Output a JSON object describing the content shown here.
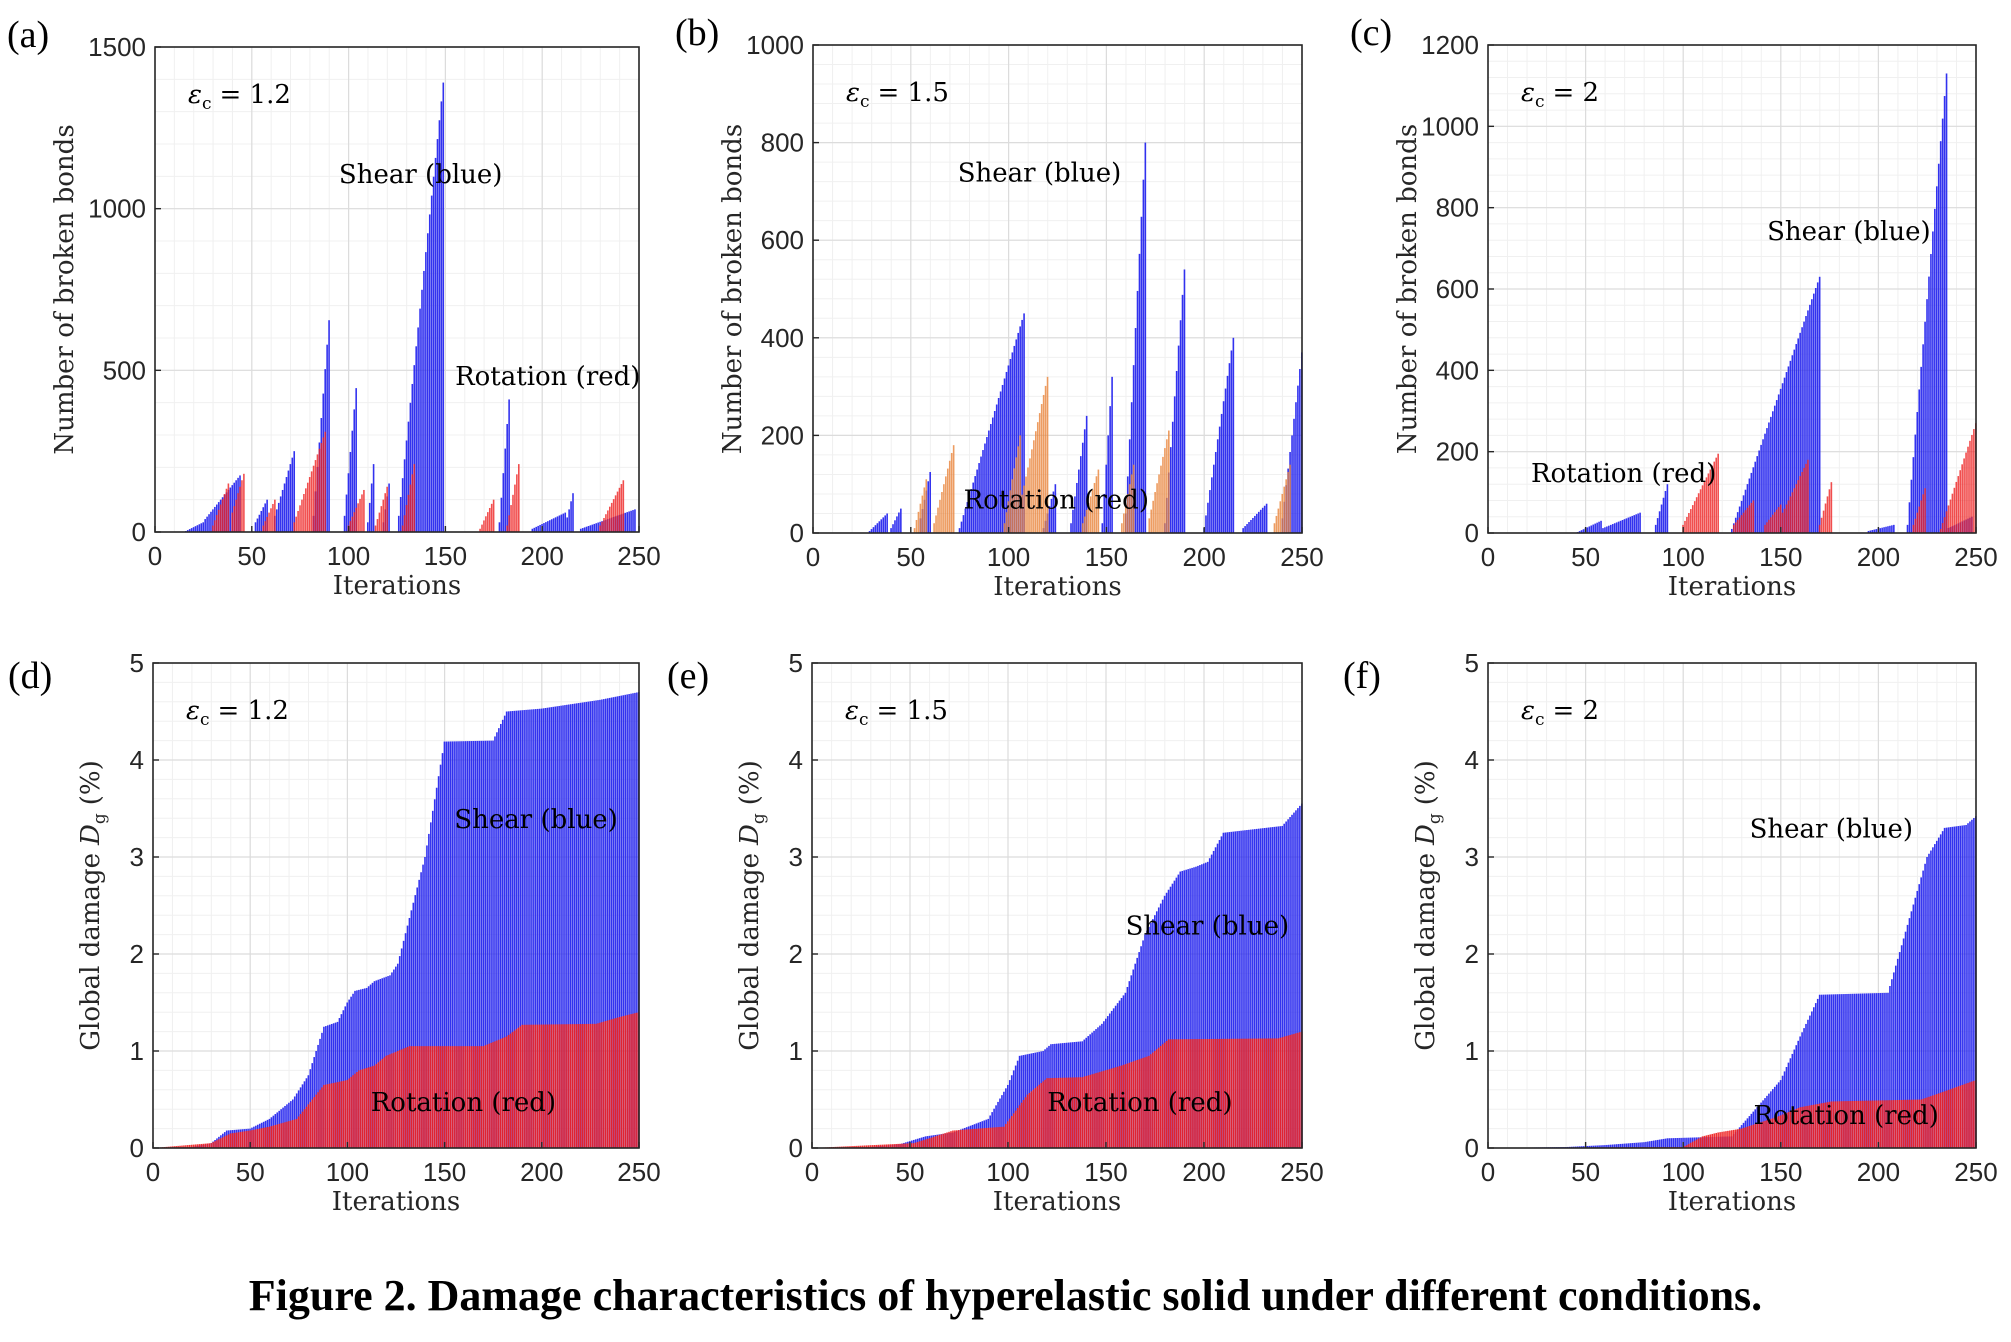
{
  "figure": {
    "caption": "Figure 2. Damage characteristics of hyperelastic solid under different conditions."
  },
  "colors": {
    "shear": "#2222ee",
    "rotation": "#ee2222",
    "rotation_alt": "#e8833a",
    "grid": "#e6e6e6"
  },
  "chart_data": [
    {
      "id": "a",
      "panel_label": "(a)",
      "type": "bar",
      "xlabel": "Iterations",
      "ylabel": "Number of broken bonds",
      "xlim": [
        0,
        250
      ],
      "ylim": [
        0,
        1500
      ],
      "xticks": [
        0,
        50,
        100,
        150,
        200,
        250
      ],
      "yticks": [
        0,
        500,
        1000,
        1500
      ],
      "eps_symbol": "ε",
      "eps_sub": "c",
      "eps_value": "= 1.2",
      "annotations": [
        {
          "text": "Shear (blue)",
          "x": 95,
          "y": 1080
        },
        {
          "text": "Rotation (red)",
          "x": 155,
          "y": 455
        }
      ],
      "series": [
        {
          "name": "Shear (blue)",
          "color": "shear",
          "mode": "ramps",
          "bursts": [
            [
              15,
              25,
              0,
              30
            ],
            [
              26,
              44,
              40,
              175
            ],
            [
              52,
              58,
              30,
              100
            ],
            [
              62,
              72,
              50,
              250
            ],
            [
              82,
              90,
              50,
              655
            ],
            [
              98,
              104,
              50,
              445
            ],
            [
              110,
              113,
              30,
              210
            ],
            [
              118,
              121,
              30,
              150
            ],
            [
              126,
              149,
              50,
              1390
            ],
            [
              178,
              183,
              30,
              410
            ],
            [
              195,
              212,
              10,
              60
            ],
            [
              212,
              216,
              20,
              120
            ],
            [
              220,
              248,
              10,
              70
            ]
          ]
        },
        {
          "name": "Rotation (red)",
          "color": "rotation",
          "mode": "ramps",
          "bursts": [
            [
              30,
              38,
              20,
              150
            ],
            [
              40,
              46,
              60,
              180
            ],
            [
              56,
              62,
              20,
              100
            ],
            [
              72,
              88,
              30,
              310
            ],
            [
              100,
              108,
              20,
              130
            ],
            [
              114,
              120,
              20,
              140
            ],
            [
              128,
              134,
              20,
              210
            ],
            [
              168,
              175,
              10,
              100
            ],
            [
              182,
              188,
              20,
              210
            ],
            [
              230,
              242,
              20,
              160
            ]
          ]
        }
      ]
    },
    {
      "id": "b",
      "panel_label": "(b)",
      "type": "bar",
      "xlabel": "Iterations",
      "ylabel": "Number of broken bonds",
      "xlim": [
        0,
        250
      ],
      "ylim": [
        0,
        1000
      ],
      "xticks": [
        0,
        50,
        100,
        150,
        200,
        250
      ],
      "yticks": [
        0,
        200,
        400,
        600,
        800,
        1000
      ],
      "eps_symbol": "ε",
      "eps_sub": "c",
      "eps_value": "= 1.5",
      "annotations": [
        {
          "text": "Shear (blue)",
          "x": 74,
          "y": 720
        },
        {
          "text": "Rotation (red)",
          "x": 77,
          "y": 50
        }
      ],
      "series": [
        {
          "name": "Shear (blue)",
          "color": "shear",
          "mode": "ramps",
          "bursts": [
            [
              28,
              38,
              0,
              40
            ],
            [
              40,
              45,
              10,
              50
            ],
            [
              55,
              60,
              30,
              125
            ],
            [
              75,
              108,
              10,
              450
            ],
            [
              118,
              124,
              10,
              100
            ],
            [
              132,
              140,
              20,
              240
            ],
            [
              148,
              153,
              20,
              320
            ],
            [
              160,
              170,
              40,
              800
            ],
            [
              180,
              190,
              20,
              540
            ],
            [
              200,
              215,
              10,
              400
            ],
            [
              220,
              232,
              10,
              60
            ],
            [
              240,
              250,
              30,
              370
            ]
          ]
        },
        {
          "name": "Rotation (red)",
          "color": "rotation_alt",
          "mode": "ramps",
          "bursts": [
            [
              52,
              58,
              10,
              110
            ],
            [
              62,
              72,
              20,
              180
            ],
            [
              98,
              106,
              20,
              200
            ],
            [
              106,
              120,
              60,
              320
            ],
            [
              138,
              146,
              20,
              130
            ],
            [
              158,
              164,
              20,
              140
            ],
            [
              172,
              182,
              30,
              210
            ],
            [
              236,
              244,
              20,
              140
            ]
          ]
        }
      ]
    },
    {
      "id": "c",
      "panel_label": "(c)",
      "type": "bar",
      "xlabel": "Iterations",
      "ylabel": "Number of broken bonds",
      "xlim": [
        0,
        250
      ],
      "ylim": [
        0,
        1200
      ],
      "xticks": [
        0,
        50,
        100,
        150,
        200,
        250
      ],
      "yticks": [
        0,
        200,
        400,
        600,
        800,
        1000,
        1200
      ],
      "eps_symbol": "ε",
      "eps_sub": "c",
      "eps_value": "= 2",
      "annotations": [
        {
          "text": "Shear (blue)",
          "x": 143,
          "y": 720
        },
        {
          "text": "Rotation (red)",
          "x": 22,
          "y": 125
        }
      ],
      "series": [
        {
          "name": "Shear (blue)",
          "color": "shear",
          "mode": "ramps",
          "bursts": [
            [
              45,
              58,
              0,
              30
            ],
            [
              58,
              78,
              10,
              50
            ],
            [
              86,
              92,
              20,
              120
            ],
            [
              125,
              170,
              10,
              630
            ],
            [
              195,
              208,
              5,
              20
            ],
            [
              215,
              235,
              20,
              1130
            ],
            [
              235,
              248,
              10,
              40
            ]
          ]
        },
        {
          "name": "Rotation (red)",
          "color": "rotation",
          "mode": "ramps",
          "bursts": [
            [
              100,
              118,
              20,
              195
            ],
            [
              126,
              136,
              20,
              80
            ],
            [
              142,
              150,
              20,
              70
            ],
            [
              150,
              164,
              40,
              180
            ],
            [
              170,
              176,
              20,
              125
            ],
            [
              218,
              224,
              20,
              110
            ],
            [
              232,
              250,
              10,
              270
            ]
          ]
        }
      ]
    },
    {
      "id": "d",
      "panel_label": "(d)",
      "type": "area",
      "xlabel": "Iterations",
      "ylabel": "Global damage",
      "ylabel_sym": "D",
      "ylabel_sub": "g",
      "ylabel_unit": "(%)",
      "xlim": [
        0,
        250
      ],
      "ylim": [
        0,
        5
      ],
      "xticks": [
        0,
        50,
        100,
        150,
        200,
        250
      ],
      "yticks": [
        0,
        1,
        2,
        3,
        4,
        5
      ],
      "eps_symbol": "ε",
      "eps_sub": "c",
      "eps_value": "= 1.2",
      "annotations": [
        {
          "text": "Shear (blue)",
          "x": 155,
          "y": 3.3
        },
        {
          "text": "Rotation (red)",
          "x": 112,
          "y": 0.38
        }
      ],
      "series": [
        {
          "name": "Shear (blue)",
          "color": "shear",
          "mode": "steps",
          "points": [
            [
              0,
              0
            ],
            [
              20,
              0.01
            ],
            [
              30,
              0.05
            ],
            [
              38,
              0.18
            ],
            [
              50,
              0.2
            ],
            [
              60,
              0.3
            ],
            [
              72,
              0.5
            ],
            [
              80,
              0.75
            ],
            [
              88,
              1.25
            ],
            [
              95,
              1.3
            ],
            [
              100,
              1.5
            ],
            [
              104,
              1.62
            ],
            [
              110,
              1.65
            ],
            [
              114,
              1.72
            ],
            [
              122,
              1.78
            ],
            [
              126,
              1.9
            ],
            [
              140,
              3.0
            ],
            [
              150,
              4.19
            ],
            [
              175,
              4.2
            ],
            [
              182,
              4.5
            ],
            [
              200,
              4.53
            ],
            [
              230,
              4.62
            ],
            [
              250,
              4.7
            ]
          ]
        },
        {
          "name": "Rotation (red)",
          "color": "rotation",
          "mode": "steps",
          "points": [
            [
              0,
              0
            ],
            [
              30,
              0.05
            ],
            [
              40,
              0.15
            ],
            [
              50,
              0.18
            ],
            [
              60,
              0.22
            ],
            [
              74,
              0.3
            ],
            [
              80,
              0.45
            ],
            [
              88,
              0.65
            ],
            [
              100,
              0.7
            ],
            [
              106,
              0.8
            ],
            [
              114,
              0.85
            ],
            [
              120,
              0.95
            ],
            [
              132,
              1.05
            ],
            [
              170,
              1.05
            ],
            [
              182,
              1.15
            ],
            [
              190,
              1.27
            ],
            [
              228,
              1.28
            ],
            [
              240,
              1.35
            ],
            [
              250,
              1.4
            ]
          ]
        }
      ]
    },
    {
      "id": "e",
      "panel_label": "(e)",
      "type": "area",
      "xlabel": "Iterations",
      "ylabel": "Global damage",
      "ylabel_sym": "D",
      "ylabel_sub": "g",
      "ylabel_unit": "(%)",
      "xlim": [
        0,
        250
      ],
      "ylim": [
        0,
        5
      ],
      "xticks": [
        0,
        50,
        100,
        150,
        200,
        250
      ],
      "yticks": [
        0,
        1,
        2,
        3,
        4,
        5
      ],
      "eps_symbol": "ε",
      "eps_sub": "c",
      "eps_value": "= 1.5",
      "annotations": [
        {
          "text": "Shear (blue)",
          "x": 160,
          "y": 2.2
        },
        {
          "text": "Rotation (red)",
          "x": 120,
          "y": 0.38
        }
      ],
      "series": [
        {
          "name": "Shear (blue)",
          "color": "shear",
          "mode": "steps",
          "points": [
            [
              0,
              0
            ],
            [
              30,
              0.01
            ],
            [
              45,
              0.04
            ],
            [
              58,
              0.12
            ],
            [
              72,
              0.16
            ],
            [
              90,
              0.3
            ],
            [
              100,
              0.65
            ],
            [
              106,
              0.95
            ],
            [
              118,
              1.0
            ],
            [
              122,
              1.07
            ],
            [
              138,
              1.1
            ],
            [
              148,
              1.28
            ],
            [
              160,
              1.6
            ],
            [
              170,
              2.2
            ],
            [
              180,
              2.6
            ],
            [
              188,
              2.85
            ],
            [
              196,
              2.9
            ],
            [
              202,
              2.95
            ],
            [
              210,
              3.25
            ],
            [
              240,
              3.32
            ],
            [
              250,
              3.55
            ]
          ]
        },
        {
          "name": "Rotation (red)",
          "color": "rotation",
          "mode": "steps",
          "points": [
            [
              0,
              0
            ],
            [
              52,
              0.05
            ],
            [
              60,
              0.1
            ],
            [
              72,
              0.18
            ],
            [
              98,
              0.22
            ],
            [
              110,
              0.55
            ],
            [
              120,
              0.72
            ],
            [
              138,
              0.73
            ],
            [
              158,
              0.85
            ],
            [
              172,
              0.95
            ],
            [
              182,
              1.12
            ],
            [
              238,
              1.13
            ],
            [
              250,
              1.2
            ]
          ]
        }
      ]
    },
    {
      "id": "f",
      "panel_label": "(f)",
      "type": "area",
      "xlabel": "Iterations",
      "ylabel": "Global damage",
      "ylabel_sym": "D",
      "ylabel_sub": "g",
      "ylabel_unit": "(%)",
      "xlim": [
        0,
        250
      ],
      "ylim": [
        0,
        5
      ],
      "xticks": [
        0,
        50,
        100,
        150,
        200,
        250
      ],
      "yticks": [
        0,
        1,
        2,
        3,
        4,
        5
      ],
      "eps_symbol": "ε",
      "eps_sub": "c",
      "eps_value": "= 2",
      "annotations": [
        {
          "text": "Shear (blue)",
          "x": 134,
          "y": 3.2
        },
        {
          "text": "Rotation (red)",
          "x": 136,
          "y": 0.25
        }
      ],
      "series": [
        {
          "name": "Shear (blue)",
          "color": "shear",
          "mode": "steps",
          "points": [
            [
              0,
              0
            ],
            [
              40,
              0.01
            ],
            [
              60,
              0.03
            ],
            [
              80,
              0.06
            ],
            [
              92,
              0.1
            ],
            [
              125,
              0.12
            ],
            [
              150,
              0.7
            ],
            [
              160,
              1.15
            ],
            [
              170,
              1.58
            ],
            [
              205,
              1.6
            ],
            [
              215,
              2.3
            ],
            [
              225,
              3.0
            ],
            [
              234,
              3.3
            ],
            [
              245,
              3.33
            ],
            [
              250,
              3.42
            ]
          ]
        },
        {
          "name": "Rotation (red)",
          "color": "rotation",
          "mode": "steps",
          "points": [
            [
              0,
              0
            ],
            [
              100,
              0.01
            ],
            [
              110,
              0.12
            ],
            [
              118,
              0.16
            ],
            [
              130,
              0.2
            ],
            [
              148,
              0.32
            ],
            [
              160,
              0.42
            ],
            [
              176,
              0.48
            ],
            [
              222,
              0.5
            ],
            [
              232,
              0.57
            ],
            [
              250,
              0.7
            ]
          ]
        }
      ]
    }
  ]
}
